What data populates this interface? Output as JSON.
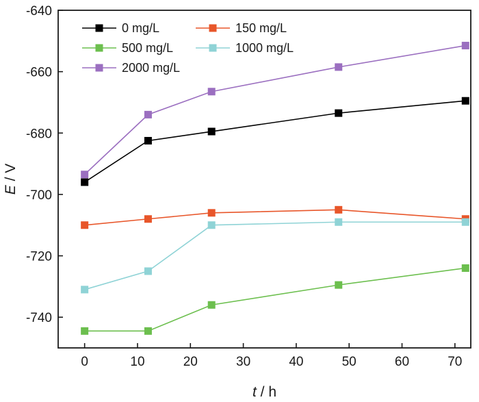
{
  "chart_data": {
    "type": "line",
    "title": "",
    "xlabel": {
      "var": "t",
      "unit": " / h"
    },
    "ylabel": {
      "var": "E",
      "unit": " / V"
    },
    "xlim": [
      -5,
      73
    ],
    "ylim": [
      -750,
      -640
    ],
    "xticks": [
      0,
      10,
      20,
      30,
      40,
      50,
      60,
      70
    ],
    "yticks": [
      -740,
      -720,
      -700,
      -680,
      -660,
      -640
    ],
    "grid": false,
    "legend_position": "top-left",
    "x": [
      0,
      12,
      24,
      48,
      72
    ],
    "series": [
      {
        "name": "0 mg/L",
        "color": "#000000",
        "marker": "square",
        "values": [
          -696,
          -682.5,
          -679.5,
          -673.5,
          -669.5
        ]
      },
      {
        "name": "150 mg/L",
        "color": "#e8562a",
        "marker": "square",
        "values": [
          -710,
          -708,
          -706,
          -705,
          -708
        ]
      },
      {
        "name": "500 mg/L",
        "color": "#6cbf4e",
        "marker": "square",
        "values": [
          -744.5,
          -744.5,
          -736,
          -729.5,
          -724
        ]
      },
      {
        "name": "1000 mg/L",
        "color": "#8fd3d6",
        "marker": "square",
        "values": [
          -731,
          -725,
          -710,
          -709,
          -709
        ]
      },
      {
        "name": "2000 mg/L",
        "color": "#9b6fc0",
        "marker": "square",
        "values": [
          -693.5,
          -674,
          -666.5,
          -658.5,
          -651.5
        ]
      }
    ]
  }
}
